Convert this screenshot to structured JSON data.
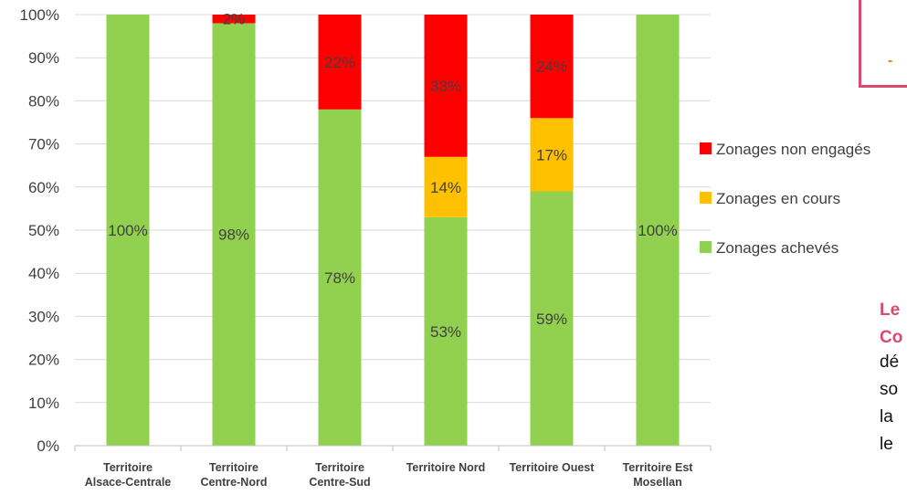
{
  "chart_data": {
    "type": "bar",
    "stacked": true,
    "normalized": true,
    "categories": [
      [
        "Territoire",
        "Alsace-Centrale"
      ],
      [
        "Territoire",
        "Centre-Nord"
      ],
      [
        "Territoire",
        "Centre-Sud"
      ],
      [
        "Territoire Nord"
      ],
      [
        "Territoire Ouest"
      ],
      [
        "Territoire Est",
        "Mosellan"
      ]
    ],
    "series": [
      {
        "name": "Zonages achevés",
        "color": "#92d050",
        "values": [
          100,
          98,
          78,
          53,
          59,
          100
        ],
        "labels": [
          "100%",
          "98%",
          "78%",
          "53%",
          "59%",
          "100%"
        ]
      },
      {
        "name": "Zonages en cours",
        "color": "#ffc000",
        "values": [
          0,
          0,
          0,
          14,
          17,
          0
        ],
        "labels": [
          "",
          "",
          "",
          "14%",
          "17%",
          ""
        ]
      },
      {
        "name": "Zonages non engagés",
        "color": "#ff0000",
        "values": [
          0,
          2,
          22,
          33,
          24,
          0
        ],
        "labels": [
          "",
          "2%",
          "22%",
          "33%",
          "24%",
          ""
        ]
      }
    ],
    "yticks": [
      "0%",
      "10%",
      "20%",
      "30%",
      "40%",
      "50%",
      "60%",
      "70%",
      "80%",
      "90%",
      "100%"
    ],
    "ylim": [
      0,
      100
    ],
    "grid": true,
    "legend_position": "right",
    "legend_order": [
      "Zonages non engagés",
      "Zonages en cours",
      "Zonages achevés"
    ]
  },
  "side_panel": {
    "dash": "-",
    "lines_bold": [
      "Le",
      "Co"
    ],
    "lines_plain": [
      "dé",
      "so",
      "la",
      "le"
    ]
  }
}
